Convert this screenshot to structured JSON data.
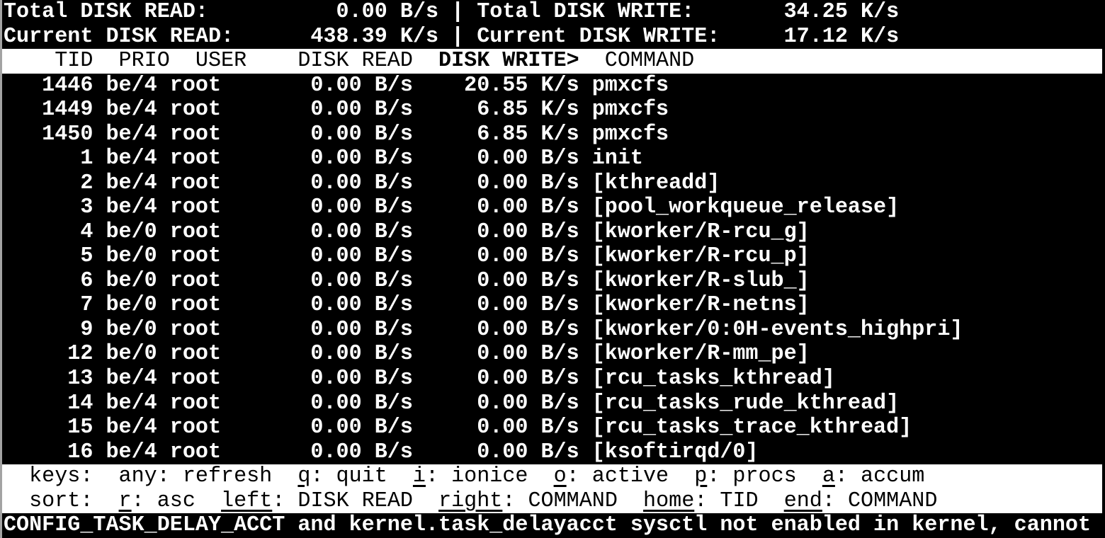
{
  "terminal": {
    "app": "iotop",
    "colors": {
      "background": "#000000",
      "foreground": "#ffffff",
      "inverse_background": "#ffffff",
      "inverse_foreground": "#000000",
      "left_edge": "#a3a3a3"
    },
    "summary": {
      "total_read_label": "Total DISK READ:",
      "total_read_value": "0.00 B/s",
      "total_write_label": "Total DISK WRITE:",
      "total_write_value": "34.25 K/s",
      "current_read_label": "Current DISK READ:",
      "current_read_value": "438.39 K/s",
      "current_write_label": "Current DISK WRITE:",
      "current_write_value": "17.12 K/s",
      "separator": "|"
    },
    "table": {
      "columns": [
        "TID",
        "PRIO",
        "USER",
        "DISK READ",
        "DISK WRITE",
        "COMMAND"
      ],
      "sort_column": "DISK WRITE",
      "header_pre": "    TID  PRIO  USER    DISK READ  ",
      "header_sort": "DISK WRITE>",
      "header_post": "  COMMAND",
      "rows": [
        {
          "tid": "1446",
          "prio": "be/4",
          "user": "root",
          "disk_read": "0.00 B/s",
          "disk_write": "20.55 K/s",
          "command": "pmxcfs"
        },
        {
          "tid": "1449",
          "prio": "be/4",
          "user": "root",
          "disk_read": "0.00 B/s",
          "disk_write": "6.85 K/s",
          "command": "pmxcfs"
        },
        {
          "tid": "1450",
          "prio": "be/4",
          "user": "root",
          "disk_read": "0.00 B/s",
          "disk_write": "6.85 K/s",
          "command": "pmxcfs"
        },
        {
          "tid": "1",
          "prio": "be/4",
          "user": "root",
          "disk_read": "0.00 B/s",
          "disk_write": "0.00 B/s",
          "command": "init"
        },
        {
          "tid": "2",
          "prio": "be/4",
          "user": "root",
          "disk_read": "0.00 B/s",
          "disk_write": "0.00 B/s",
          "command": "[kthreadd]"
        },
        {
          "tid": "3",
          "prio": "be/4",
          "user": "root",
          "disk_read": "0.00 B/s",
          "disk_write": "0.00 B/s",
          "command": "[pool_workqueue_release]"
        },
        {
          "tid": "4",
          "prio": "be/0",
          "user": "root",
          "disk_read": "0.00 B/s",
          "disk_write": "0.00 B/s",
          "command": "[kworker/R-rcu_g]"
        },
        {
          "tid": "5",
          "prio": "be/0",
          "user": "root",
          "disk_read": "0.00 B/s",
          "disk_write": "0.00 B/s",
          "command": "[kworker/R-rcu_p]"
        },
        {
          "tid": "6",
          "prio": "be/0",
          "user": "root",
          "disk_read": "0.00 B/s",
          "disk_write": "0.00 B/s",
          "command": "[kworker/R-slub_]"
        },
        {
          "tid": "7",
          "prio": "be/0",
          "user": "root",
          "disk_read": "0.00 B/s",
          "disk_write": "0.00 B/s",
          "command": "[kworker/R-netns]"
        },
        {
          "tid": "9",
          "prio": "be/0",
          "user": "root",
          "disk_read": "0.00 B/s",
          "disk_write": "0.00 B/s",
          "command": "[kworker/0:0H-events_highpri]"
        },
        {
          "tid": "12",
          "prio": "be/0",
          "user": "root",
          "disk_read": "0.00 B/s",
          "disk_write": "0.00 B/s",
          "command": "[kworker/R-mm_pe]"
        },
        {
          "tid": "13",
          "prio": "be/4",
          "user": "root",
          "disk_read": "0.00 B/s",
          "disk_write": "0.00 B/s",
          "command": "[rcu_tasks_kthread]"
        },
        {
          "tid": "14",
          "prio": "be/4",
          "user": "root",
          "disk_read": "0.00 B/s",
          "disk_write": "0.00 B/s",
          "command": "[rcu_tasks_rude_kthread]"
        },
        {
          "tid": "15",
          "prio": "be/4",
          "user": "root",
          "disk_read": "0.00 B/s",
          "disk_write": "0.00 B/s",
          "command": "[rcu_tasks_trace_kthread]"
        },
        {
          "tid": "16",
          "prio": "be/4",
          "user": "root",
          "disk_read": "0.00 B/s",
          "disk_write": "0.00 B/s",
          "command": "[ksoftirqd/0]"
        }
      ]
    },
    "help": {
      "keys_segments": [
        {
          "t": "  keys:  any: refresh  "
        },
        {
          "t": "q",
          "u": true
        },
        {
          "t": ": quit  "
        },
        {
          "t": "i",
          "u": true
        },
        {
          "t": ": ionice  "
        },
        {
          "t": "o",
          "u": true
        },
        {
          "t": ": active  "
        },
        {
          "t": "p",
          "u": true
        },
        {
          "t": ": procs  "
        },
        {
          "t": "a",
          "u": true
        },
        {
          "t": ": accum"
        }
      ],
      "sort_segments": [
        {
          "t": "  sort:  "
        },
        {
          "t": "r",
          "u": true
        },
        {
          "t": ": asc  "
        },
        {
          "t": "left",
          "u": true
        },
        {
          "t": ": DISK READ  "
        },
        {
          "t": "right",
          "u": true
        },
        {
          "t": ": COMMAND  "
        },
        {
          "t": "home",
          "u": true
        },
        {
          "t": ": TID  "
        },
        {
          "t": "end",
          "u": true
        },
        {
          "t": ": COMMAND"
        }
      ]
    },
    "status_line": "CONFIG_TASK_DELAY_ACCT and kernel.task_delayacct sysctl not enabled in kernel, cannot"
  }
}
